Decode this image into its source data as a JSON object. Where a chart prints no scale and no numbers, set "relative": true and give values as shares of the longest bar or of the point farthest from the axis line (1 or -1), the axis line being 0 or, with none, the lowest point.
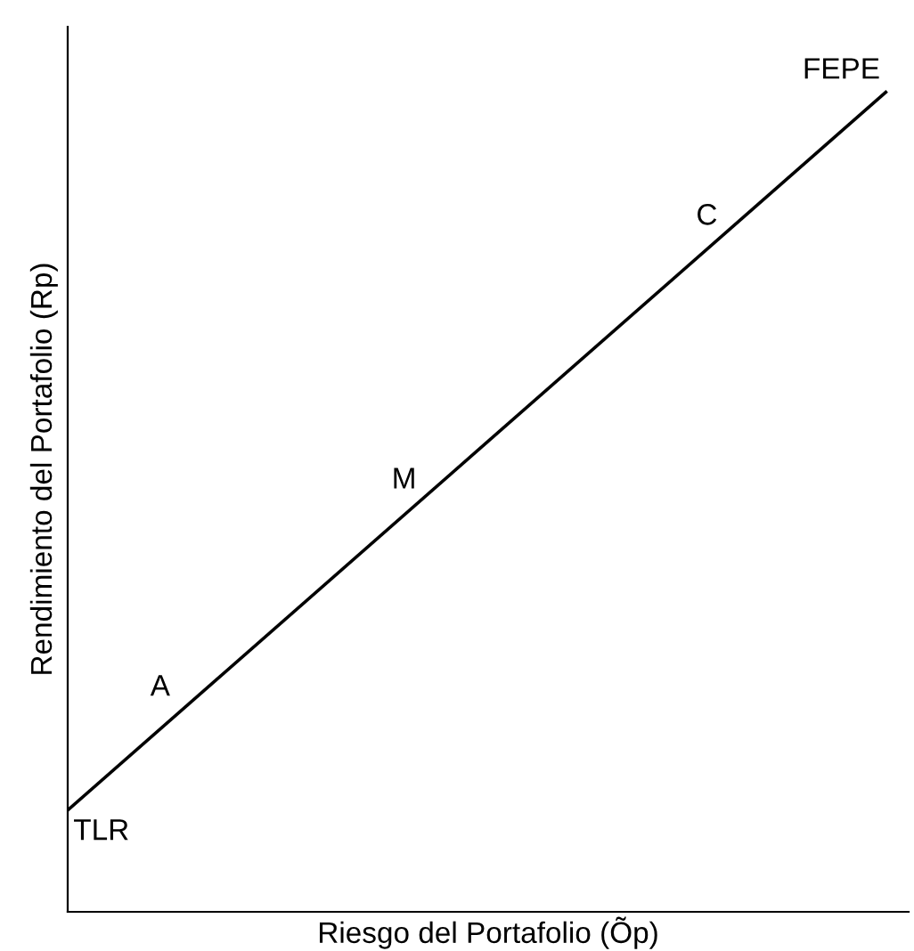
{
  "chart_data": {
    "type": "line",
    "relative": true,
    "xlabel": "Riesgo del Portafolio (Õp)",
    "ylabel": "Rendimiento del Portafolio (Rp)",
    "categories": [
      null,
      null
    ],
    "series": [
      {
        "color": "#000000",
        "values": [
          0.124,
          1.0
        ]
      }
    ],
    "annotations": [
      "TLR",
      "A",
      "M",
      "C",
      "FEPE"
    ],
    "marker": "none",
    "line_style": "solid"
  }
}
